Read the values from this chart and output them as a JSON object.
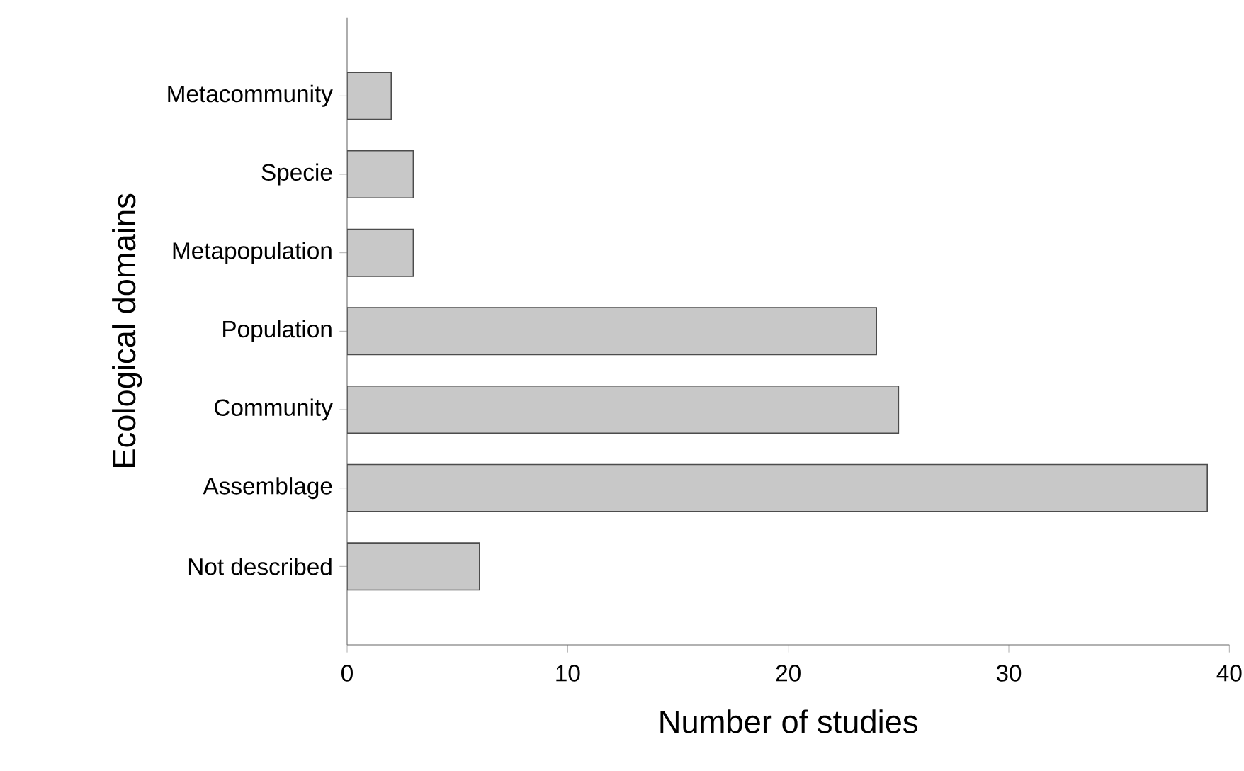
{
  "chart_data": {
    "type": "bar",
    "orientation": "horizontal",
    "xlabel": "Number of studies",
    "ylabel": "Ecological domains",
    "categories": [
      "Metacommunity",
      "Specie",
      "Metapopulation",
      "Population",
      "Community",
      "Assemblage",
      "Not described"
    ],
    "values": [
      2,
      3,
      3,
      24,
      25,
      39,
      6
    ],
    "color": "#c8c8c8",
    "xlim": [
      0,
      40
    ],
    "xticks": [
      0,
      10,
      20,
      30,
      40
    ]
  }
}
